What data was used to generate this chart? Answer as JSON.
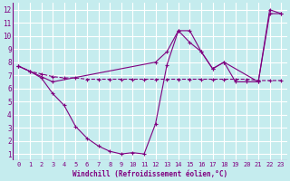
{
  "xlabel": "Windchill (Refroidissement éolien,°C)",
  "background_color": "#c5ecee",
  "grid_color": "#ffffff",
  "line_color": "#800080",
  "marker": "+",
  "xlim": [
    -0.5,
    23.5
  ],
  "ylim": [
    0.5,
    12.5
  ],
  "xticks": [
    0,
    1,
    2,
    3,
    4,
    5,
    6,
    7,
    8,
    9,
    10,
    11,
    12,
    13,
    14,
    15,
    16,
    17,
    18,
    19,
    20,
    21,
    22,
    23
  ],
  "yticks": [
    1,
    2,
    3,
    4,
    5,
    6,
    7,
    8,
    9,
    10,
    11,
    12
  ],
  "line1_x": [
    0,
    1,
    2,
    3,
    4,
    5,
    6,
    7,
    8,
    9,
    10,
    11,
    12,
    13,
    14,
    15,
    16,
    17,
    18,
    19,
    20,
    21,
    22,
    23
  ],
  "line1_y": [
    7.7,
    7.3,
    6.8,
    5.6,
    4.7,
    3.1,
    2.2,
    1.6,
    1.2,
    1.0,
    1.1,
    1.0,
    3.3,
    7.8,
    10.4,
    10.4,
    8.8,
    7.5,
    8.0,
    6.5,
    6.5,
    6.5,
    12.0,
    11.7
  ],
  "line2_x": [
    0,
    1,
    2,
    3,
    4,
    5,
    6,
    7,
    8,
    9,
    10,
    11,
    12,
    13,
    14,
    15,
    16,
    17,
    18,
    19,
    20,
    21,
    22,
    23
  ],
  "line2_y": [
    7.7,
    7.3,
    7.1,
    6.9,
    6.8,
    6.8,
    6.7,
    6.7,
    6.7,
    6.7,
    6.7,
    6.7,
    6.7,
    6.7,
    6.7,
    6.7,
    6.7,
    6.7,
    6.7,
    6.7,
    6.7,
    6.6,
    6.6,
    6.6
  ],
  "line3_x": [
    0,
    3,
    12,
    13,
    14,
    15,
    16,
    17,
    18,
    21,
    22,
    23
  ],
  "line3_y": [
    7.7,
    6.5,
    8.0,
    8.8,
    10.4,
    9.5,
    8.8,
    7.5,
    8.0,
    6.5,
    11.7,
    11.7
  ]
}
